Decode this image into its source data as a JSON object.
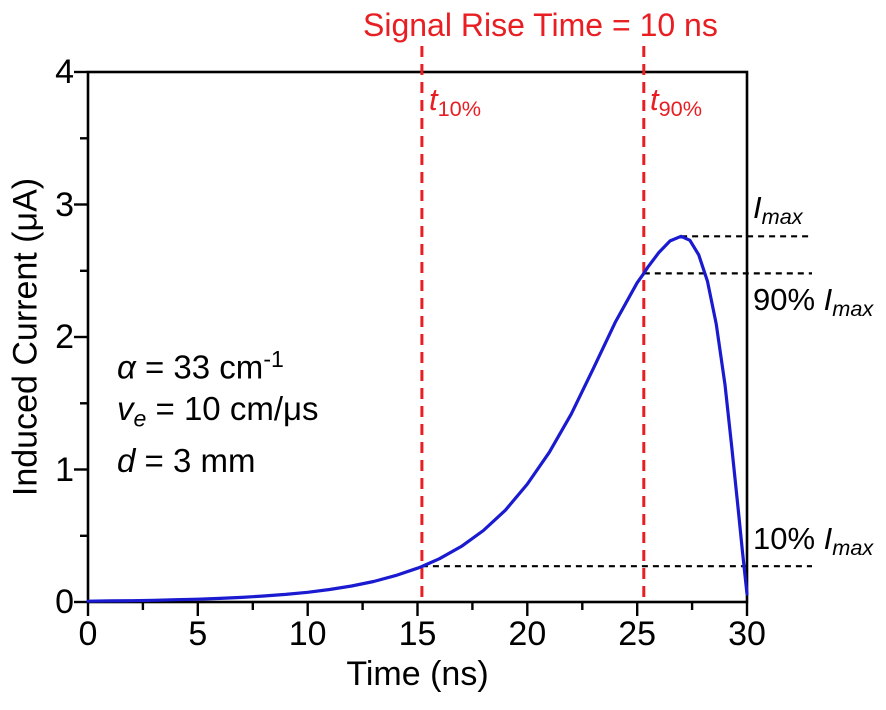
{
  "figure": {
    "title": "Signal Rise Time = 10 ns"
  },
  "colors": {
    "red": "#e81e23",
    "blue": "#1a1ad0",
    "black": "#000000"
  },
  "labels": {
    "t10": [
      {
        "t": "t",
        "it": true
      },
      {
        "t": "10%",
        "sub": true
      }
    ],
    "t90": [
      {
        "t": "t",
        "it": true
      },
      {
        "t": "90%",
        "sub": true
      }
    ],
    "imax": [
      {
        "t": "I",
        "it": true
      },
      {
        "t": "max",
        "sub": true,
        "it": true
      }
    ],
    "imax90": [
      {
        "t": "90% "
      },
      {
        "t": "I",
        "it": true
      },
      {
        "t": "max",
        "sub": true,
        "it": true
      }
    ],
    "imax10": [
      {
        "t": "10% "
      },
      {
        "t": "I",
        "it": true
      },
      {
        "t": "max",
        "sub": true,
        "it": true
      }
    ],
    "ann_alpha": [
      {
        "t": "α",
        "it": true
      },
      {
        "t": " = 33 cm"
      },
      {
        "t": "-1",
        "sup": true
      }
    ],
    "ann_velocity": [
      {
        "t": "v",
        "it": true
      },
      {
        "t": "e",
        "sub": true,
        "it": true
      },
      {
        "t": " = 10 cm/μs"
      }
    ],
    "ann_thickness": [
      {
        "t": "d",
        "it": true
      },
      {
        "t": " = 3 mm"
      }
    ]
  },
  "chart_data": {
    "type": "line",
    "title": "Signal Rise Time = 10 ns",
    "xlabel": "Time (ns)",
    "ylabel": "Induced Current (μA)",
    "xlim": [
      0,
      30
    ],
    "ylim": [
      0,
      4
    ],
    "x_ticks": [
      0,
      5,
      10,
      15,
      20,
      25,
      30
    ],
    "x_minor_ticks": [
      2.5,
      7.5,
      12.5,
      17.5,
      22.5,
      27.5
    ],
    "y_ticks": [
      0,
      1,
      2,
      3,
      4
    ],
    "y_minor_ticks": [
      0.5,
      1.5,
      2.5,
      3.5
    ],
    "grid": false,
    "legend": false,
    "series": [
      {
        "name": "Induced current",
        "points": [
          [
            0,
            0.006
          ],
          [
            1,
            0.008
          ],
          [
            2,
            0.01
          ],
          [
            3,
            0.013
          ],
          [
            4,
            0.017
          ],
          [
            5,
            0.021
          ],
          [
            6,
            0.027
          ],
          [
            7,
            0.035
          ],
          [
            8,
            0.045
          ],
          [
            9,
            0.057
          ],
          [
            10,
            0.073
          ],
          [
            11,
            0.094
          ],
          [
            12,
            0.121
          ],
          [
            13,
            0.155
          ],
          [
            14,
            0.199
          ],
          [
            15,
            0.255
          ],
          [
            15.2,
            0.268
          ],
          [
            16,
            0.327
          ],
          [
            17,
            0.42
          ],
          [
            18,
            0.54
          ],
          [
            19,
            0.693
          ],
          [
            20,
            0.89
          ],
          [
            21,
            1.13
          ],
          [
            22,
            1.42
          ],
          [
            23,
            1.76
          ],
          [
            24,
            2.11
          ],
          [
            25,
            2.41
          ],
          [
            25.3,
            2.48
          ],
          [
            25.5,
            2.53
          ],
          [
            26,
            2.64
          ],
          [
            26.5,
            2.725
          ],
          [
            27,
            2.76
          ],
          [
            27.4,
            2.73
          ],
          [
            27.8,
            2.62
          ],
          [
            28.2,
            2.42
          ],
          [
            28.6,
            2.1
          ],
          [
            29,
            1.64
          ],
          [
            29.3,
            1.18
          ],
          [
            29.6,
            0.7
          ],
          [
            29.8,
            0.37
          ],
          [
            30,
            0.06
          ]
        ]
      }
    ],
    "reference": {
      "t_10pct_ns": 15.2,
      "t_90pct_ns": 25.3,
      "rise_time_ns": 10,
      "peak_time_ns": 27,
      "I_max_uA": 2.76,
      "I_90pct_uA": 2.48,
      "I_10pct_uA": 0.27
    }
  }
}
